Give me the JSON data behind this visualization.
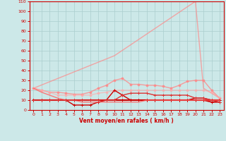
{
  "title": "",
  "xlabel": "Vent moyen/en rafales ( km/h )",
  "ylabel": "",
  "background_color": "#cce8e8",
  "grid_color": "#aacece",
  "xlim": [
    -0.5,
    23.5
  ],
  "ylim": [
    0,
    110
  ],
  "yticks": [
    0,
    10,
    20,
    30,
    40,
    50,
    60,
    70,
    80,
    90,
    100,
    110
  ],
  "xticks": [
    0,
    1,
    2,
    3,
    4,
    5,
    6,
    7,
    8,
    9,
    10,
    11,
    12,
    13,
    14,
    15,
    16,
    17,
    18,
    19,
    20,
    21,
    22,
    23
  ],
  "lines": [
    {
      "x": [
        0,
        10,
        20,
        21,
        23
      ],
      "y": [
        22,
        55,
        110,
        22,
        12
      ],
      "color": "#ff8888",
      "lw": 1.0,
      "marker": null,
      "ms": 0,
      "alpha": 0.7
    },
    {
      "x": [
        0,
        1,
        2,
        3,
        4,
        5,
        6,
        7,
        8,
        9,
        10,
        11,
        12,
        13,
        14,
        15,
        16,
        17,
        18,
        19,
        20,
        21,
        22,
        23
      ],
      "y": [
        22,
        20,
        18,
        18,
        17,
        16,
        16,
        18,
        22,
        25,
        30,
        32,
        26,
        26,
        25,
        25,
        24,
        22,
        25,
        29,
        30,
        30,
        20,
        12
      ],
      "color": "#ff8888",
      "lw": 1.0,
      "marker": "o",
      "ms": 2.0,
      "alpha": 0.8
    },
    {
      "x": [
        0,
        1,
        2,
        3,
        4,
        5,
        6,
        7,
        8,
        9,
        10,
        11,
        12,
        13,
        14,
        15,
        16,
        17,
        18,
        19,
        20,
        21,
        22,
        23
      ],
      "y": [
        22,
        20,
        18,
        15,
        15,
        15,
        15,
        15,
        17,
        18,
        20,
        20,
        20,
        20,
        20,
        20,
        20,
        20,
        20,
        20,
        20,
        20,
        18,
        12
      ],
      "color": "#ffaaaa",
      "lw": 1.0,
      "marker": "o",
      "ms": 2.0,
      "alpha": 0.65
    },
    {
      "x": [
        0,
        1,
        2,
        3,
        4,
        5,
        6,
        7,
        8,
        9,
        10,
        11,
        12,
        13,
        14,
        15,
        16,
        17,
        18,
        19,
        20,
        21,
        22,
        23
      ],
      "y": [
        10,
        10,
        10,
        10,
        10,
        10,
        10,
        10,
        10,
        10,
        10,
        10,
        10,
        10,
        10,
        10,
        10,
        10,
        10,
        10,
        10,
        10,
        10,
        10
      ],
      "color": "#cc0000",
      "lw": 1.5,
      "marker": "+",
      "ms": 3.5,
      "alpha": 1.0
    },
    {
      "x": [
        0,
        1,
        2,
        3,
        4,
        5,
        6,
        7,
        8,
        9,
        10,
        11,
        12,
        13,
        14,
        15,
        16,
        17,
        18,
        19,
        20,
        21,
        22,
        23
      ],
      "y": [
        10,
        10,
        10,
        10,
        10,
        10,
        10,
        10,
        10,
        10,
        10,
        10,
        10,
        10,
        10,
        10,
        10,
        10,
        10,
        10,
        10,
        10,
        8,
        8
      ],
      "color": "#cc0000",
      "lw": 1.2,
      "marker": "+",
      "ms": 3.5,
      "alpha": 1.0
    },
    {
      "x": [
        0,
        1,
        2,
        3,
        4,
        5,
        6,
        7,
        8,
        9,
        10,
        11,
        12,
        13,
        14,
        15,
        16,
        17,
        18,
        19,
        20,
        21,
        22,
        23
      ],
      "y": [
        10,
        10,
        10,
        10,
        10,
        5,
        5,
        5,
        8,
        10,
        20,
        15,
        10,
        10,
        10,
        10,
        10,
        10,
        10,
        10,
        12,
        12,
        10,
        10
      ],
      "color": "#cc0000",
      "lw": 1.0,
      "marker": "+",
      "ms": 3.5,
      "alpha": 1.0
    },
    {
      "x": [
        0,
        1,
        2,
        3,
        4,
        5,
        6,
        7,
        8,
        9,
        10,
        11,
        12,
        13,
        14,
        15,
        16,
        17,
        18,
        19,
        20,
        21,
        22,
        23
      ],
      "y": [
        22,
        18,
        15,
        12,
        10,
        10,
        8,
        8,
        8,
        8,
        8,
        8,
        8,
        8,
        10,
        10,
        10,
        10,
        10,
        10,
        10,
        10,
        10,
        10
      ],
      "color": "#ff6666",
      "lw": 1.0,
      "marker": null,
      "ms": 0,
      "alpha": 0.85
    },
    {
      "x": [
        0,
        1,
        2,
        3,
        4,
        5,
        6,
        7,
        8,
        9,
        10,
        11,
        12,
        13,
        14,
        15,
        16,
        17,
        18,
        19,
        20,
        21,
        22,
        23
      ],
      "y": [
        10,
        10,
        10,
        10,
        10,
        10,
        10,
        10,
        10,
        10,
        10,
        15,
        17,
        17,
        17,
        15,
        15,
        15,
        15,
        15,
        12,
        12,
        10,
        8
      ],
      "color": "#dd3333",
      "lw": 1.0,
      "marker": "+",
      "ms": 3.0,
      "alpha": 1.0
    }
  ]
}
